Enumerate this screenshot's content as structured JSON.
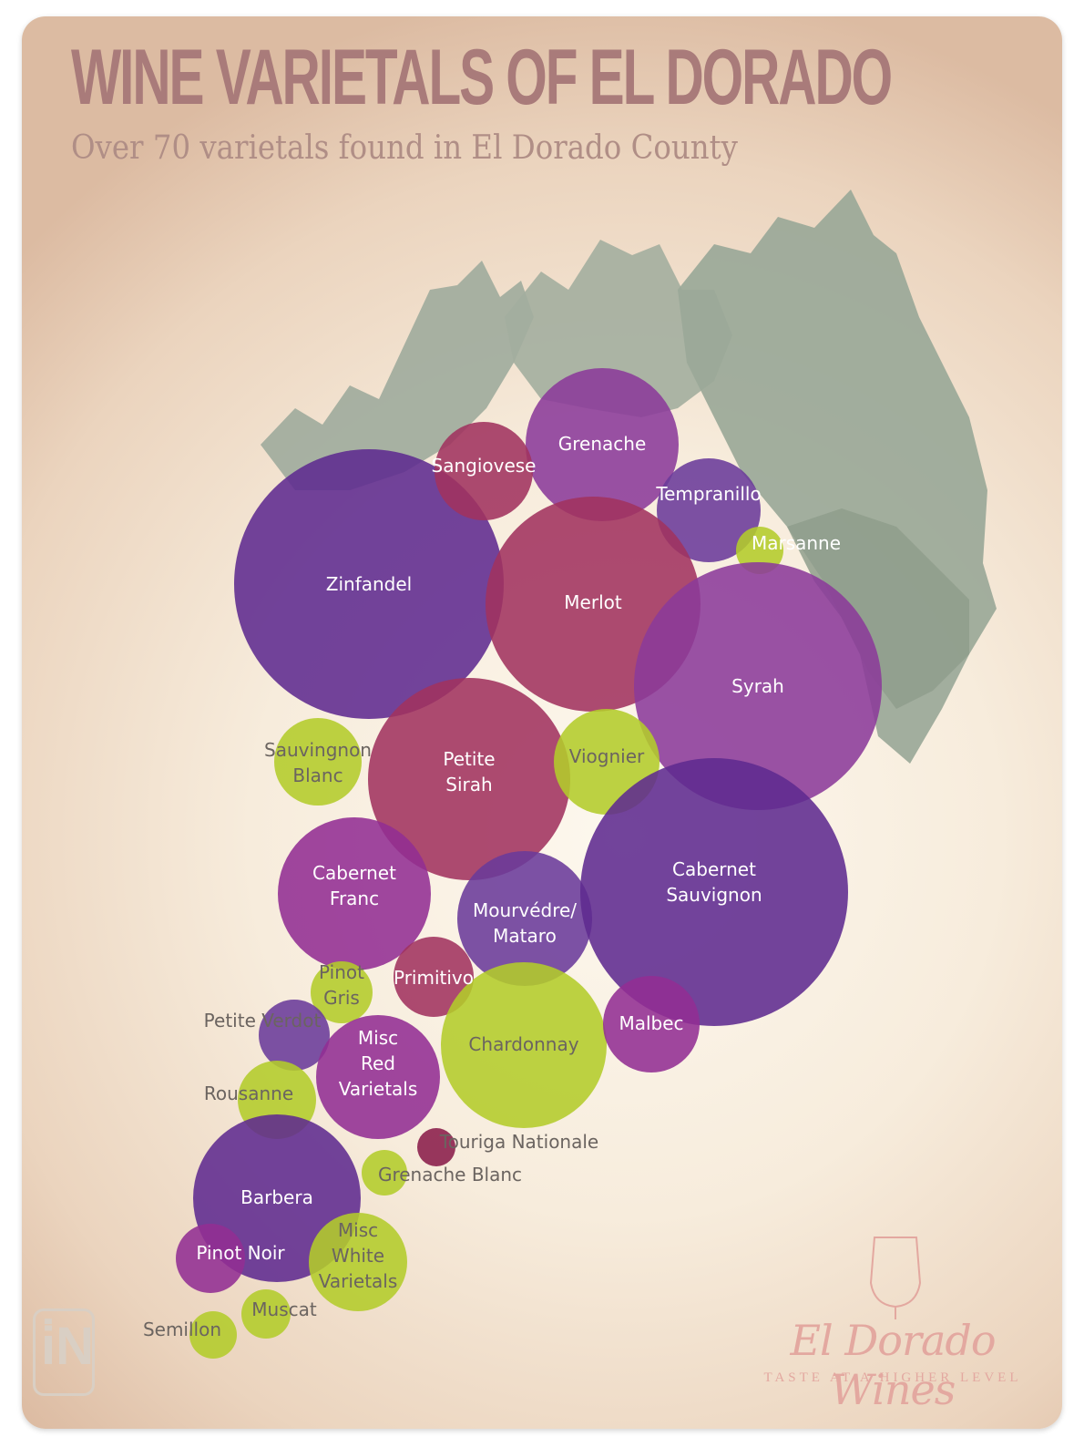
{
  "title": "WINE VARIETALS OF EL DORADO",
  "subtitle": "Over 70 varietals found in El Dorado County",
  "brand": {
    "name": "El Dorado Wines",
    "tagline": "TASTE AT A HIGHER LEVEL"
  },
  "colors": {
    "deep_purple": "#5e2a8f",
    "purple": "#8b3a9a",
    "magenta": "#922d93",
    "violet": "#6a3a9a",
    "crimson": "#a0325f",
    "dark_crimson": "#8a1c4a",
    "green": "#b3cc2a",
    "leaf": "#9aa898"
  },
  "varietals": [
    {
      "name": "Zinfandel",
      "lines": [
        "Zinfandel"
      ],
      "color": "deep_purple",
      "label": "light"
    },
    {
      "name": "Grenache",
      "lines": [
        "Grenache"
      ],
      "color": "purple",
      "label": "light"
    },
    {
      "name": "Sangiovese",
      "lines": [
        "Sangiovese"
      ],
      "color": "crimson",
      "label": "light"
    },
    {
      "name": "Tempranillo",
      "lines": [
        "Tempranillo"
      ],
      "color": "violet",
      "label": "light"
    },
    {
      "name": "Merlot",
      "lines": [
        "Merlot"
      ],
      "color": "crimson",
      "label": "light"
    },
    {
      "name": "Marsanne",
      "lines": [
        "Marsanne"
      ],
      "color": "green",
      "label": "light"
    },
    {
      "name": "Syrah",
      "lines": [
        "Syrah"
      ],
      "color": "purple",
      "label": "light"
    },
    {
      "name": "Sauvingnon Blanc",
      "lines": [
        "Sauvingnon",
        "Blanc"
      ],
      "color": "green",
      "label": "dark"
    },
    {
      "name": "Petite Sirah",
      "lines": [
        "Petite",
        "Sirah"
      ],
      "color": "crimson",
      "label": "light"
    },
    {
      "name": "Viognier",
      "lines": [
        "Viognier"
      ],
      "color": "green",
      "label": "dark"
    },
    {
      "name": "Cabernet Franc",
      "lines": [
        "Cabernet",
        "Franc"
      ],
      "color": "magenta",
      "label": "light"
    },
    {
      "name": "Mourvédre/Mataro",
      "lines": [
        "Mourvédre/",
        "Mataro"
      ],
      "color": "violet",
      "label": "light"
    },
    {
      "name": "Cabernet Sauvignon",
      "lines": [
        "Cabernet",
        "Sauvignon"
      ],
      "color": "deep_purple",
      "label": "light"
    },
    {
      "name": "Pinot Gris",
      "lines": [
        "Pinot",
        "Gris"
      ],
      "color": "green",
      "label": "dark"
    },
    {
      "name": "Primitivo",
      "lines": [
        "Primitivo"
      ],
      "color": "crimson",
      "label": "light"
    },
    {
      "name": "Chardonnay",
      "lines": [
        "Chardonnay"
      ],
      "color": "green",
      "label": "dark"
    },
    {
      "name": "Malbec",
      "lines": [
        "Malbec"
      ],
      "color": "magenta",
      "label": "light"
    },
    {
      "name": "Petite Verdot",
      "lines": [
        "Petite Verdot"
      ],
      "color": "violet",
      "label": "dark"
    },
    {
      "name": "Misc Red Varietals",
      "lines": [
        "Misc",
        "Red",
        "Varietals"
      ],
      "color": "magenta",
      "label": "light"
    },
    {
      "name": "Rousanne",
      "lines": [
        "Rousanne"
      ],
      "color": "green",
      "label": "dark"
    },
    {
      "name": "Touriga Nationale",
      "lines": [
        "Touriga Nationale"
      ],
      "color": "dark_crimson",
      "label": "dark"
    },
    {
      "name": "Grenache Blanc",
      "lines": [
        "Grenache Blanc"
      ],
      "color": "green",
      "label": "dark"
    },
    {
      "name": "Barbera",
      "lines": [
        "Barbera"
      ],
      "color": "deep_purple",
      "label": "light"
    },
    {
      "name": "Misc White Varietals",
      "lines": [
        "Misc",
        "White",
        "Varietals"
      ],
      "color": "green",
      "label": "dark"
    },
    {
      "name": "Pinot Noir",
      "lines": [
        "Pinot Noir"
      ],
      "color": "magenta",
      "label": "light"
    },
    {
      "name": "Muscat",
      "lines": [
        "Muscat"
      ],
      "color": "green",
      "label": "dark"
    },
    {
      "name": "Semillon",
      "lines": [
        "Semillon"
      ],
      "color": "green",
      "label": "dark"
    }
  ]
}
